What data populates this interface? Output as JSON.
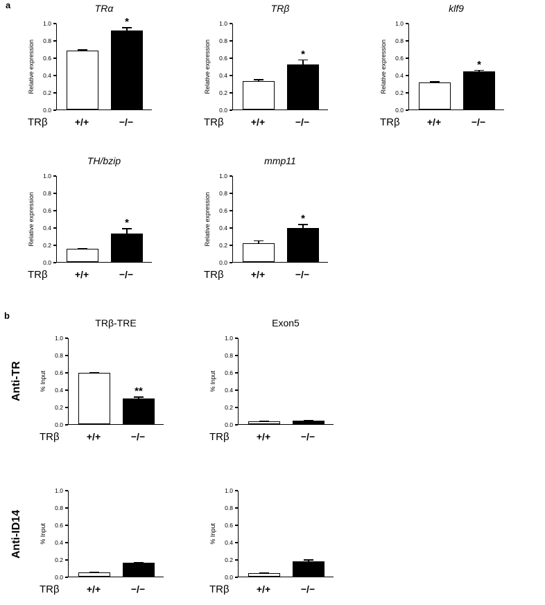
{
  "figure": {
    "panel_a_label": "a",
    "panel_b_label": "b",
    "row_labels": {
      "anti_tr": "Anti-TR",
      "anti_id14": "Anti-ID14"
    }
  },
  "chart_data": [
    {
      "id": "tra",
      "panel": "a",
      "type": "bar",
      "title": "TRα",
      "title_italic": true,
      "ylabel": "Relative expression",
      "ylim": [
        0,
        1.0
      ],
      "yticks": [
        0.0,
        0.2,
        0.4,
        0.6,
        0.8,
        1.0
      ],
      "x_axis_label": "TRβ",
      "categories": [
        "+/+",
        "−/−"
      ],
      "values": [
        0.68,
        0.91
      ],
      "errors": [
        0.015,
        0.04
      ],
      "significance": [
        "",
        "*"
      ],
      "bar_colors": [
        "#ffffff",
        "#000000"
      ]
    },
    {
      "id": "trb",
      "panel": "a",
      "type": "bar",
      "title": "TRβ",
      "title_italic": true,
      "ylabel": "Relative expression",
      "ylim": [
        0,
        1.0
      ],
      "yticks": [
        0.0,
        0.2,
        0.4,
        0.6,
        0.8,
        1.0
      ],
      "x_axis_label": "TRβ",
      "categories": [
        "+/+",
        "−/−"
      ],
      "values": [
        0.33,
        0.52
      ],
      "errors": [
        0.02,
        0.06
      ],
      "significance": [
        "",
        "*"
      ],
      "bar_colors": [
        "#ffffff",
        "#000000"
      ]
    },
    {
      "id": "klf9",
      "panel": "a",
      "type": "bar",
      "title": "klf9",
      "title_italic": true,
      "ylabel": "Relative expression",
      "ylim": [
        0,
        1.0
      ],
      "yticks": [
        0.0,
        0.2,
        0.4,
        0.6,
        0.8,
        1.0
      ],
      "x_axis_label": "TRβ",
      "categories": [
        "+/+",
        "−/−"
      ],
      "values": [
        0.31,
        0.44
      ],
      "errors": [
        0.015,
        0.02
      ],
      "significance": [
        "",
        "*"
      ],
      "bar_colors": [
        "#ffffff",
        "#000000"
      ]
    },
    {
      "id": "thbzip",
      "panel": "a",
      "type": "bar",
      "title": "TH/bzip",
      "title_italic": true,
      "ylabel": "Relative expression",
      "ylim": [
        0,
        1.0
      ],
      "yticks": [
        0.0,
        0.2,
        0.4,
        0.6,
        0.8,
        1.0
      ],
      "x_axis_label": "TRβ",
      "categories": [
        "+/+",
        "−/−"
      ],
      "values": [
        0.15,
        0.33
      ],
      "errors": [
        0.01,
        0.06
      ],
      "significance": [
        "",
        "*"
      ],
      "bar_colors": [
        "#ffffff",
        "#000000"
      ]
    },
    {
      "id": "mmp11",
      "panel": "a",
      "type": "bar",
      "title": "mmp11",
      "title_italic": true,
      "ylabel": "Relative expression",
      "ylim": [
        0,
        1.0
      ],
      "yticks": [
        0.0,
        0.2,
        0.4,
        0.6,
        0.8,
        1.0
      ],
      "x_axis_label": "TRβ",
      "categories": [
        "+/+",
        "−/−"
      ],
      "values": [
        0.22,
        0.39
      ],
      "errors": [
        0.03,
        0.05
      ],
      "significance": [
        "",
        "*"
      ],
      "bar_colors": [
        "#ffffff",
        "#000000"
      ]
    },
    {
      "id": "trb-tre",
      "panel": "b",
      "type": "bar",
      "title": "TRβ-TRE",
      "title_italic": false,
      "ylabel": "% Input",
      "ylim": [
        0,
        1.0
      ],
      "yticks": [
        0.0,
        0.2,
        0.4,
        0.6,
        0.8,
        1.0
      ],
      "x_axis_label": "TRβ",
      "categories": [
        "+/+",
        "−/−"
      ],
      "values": [
        0.59,
        0.3
      ],
      "errors": [
        0.01,
        0.02
      ],
      "significance": [
        "",
        "**"
      ],
      "bar_colors": [
        "#ffffff",
        "#000000"
      ]
    },
    {
      "id": "exon5",
      "panel": "b",
      "type": "bar",
      "title": "Exon5",
      "title_italic": false,
      "ylabel": "% Input",
      "ylim": [
        0,
        1.0
      ],
      "yticks": [
        0.0,
        0.2,
        0.4,
        0.6,
        0.8,
        1.0
      ],
      "x_axis_label": "TRβ",
      "categories": [
        "+/+",
        "−/−"
      ],
      "values": [
        0.03,
        0.04
      ],
      "errors": [
        0.008,
        0.008
      ],
      "significance": [
        "",
        ""
      ],
      "bar_colors": [
        "#ffffff",
        "#000000"
      ]
    },
    {
      "id": "anti-id14-tre",
      "panel": "b",
      "type": "bar",
      "title": "",
      "title_italic": false,
      "ylabel": "% Input",
      "ylim": [
        0,
        1.0
      ],
      "yticks": [
        0.0,
        0.2,
        0.4,
        0.6,
        0.8,
        1.0
      ],
      "x_axis_label": "TRβ",
      "categories": [
        "+/+",
        "−/−"
      ],
      "values": [
        0.05,
        0.16
      ],
      "errors": [
        0.006,
        0.008
      ],
      "significance": [
        "",
        ""
      ],
      "bar_colors": [
        "#ffffff",
        "#000000"
      ]
    },
    {
      "id": "anti-id14-exon5",
      "panel": "b",
      "type": "bar",
      "title": "",
      "title_italic": false,
      "ylabel": "% Input",
      "ylim": [
        0,
        1.0
      ],
      "yticks": [
        0.0,
        0.2,
        0.4,
        0.6,
        0.8,
        1.0
      ],
      "x_axis_label": "TRβ",
      "categories": [
        "+/+",
        "−/−"
      ],
      "values": [
        0.04,
        0.18
      ],
      "errors": [
        0.005,
        0.02
      ],
      "significance": [
        "",
        ""
      ],
      "bar_colors": [
        "#ffffff",
        "#000000"
      ]
    }
  ]
}
